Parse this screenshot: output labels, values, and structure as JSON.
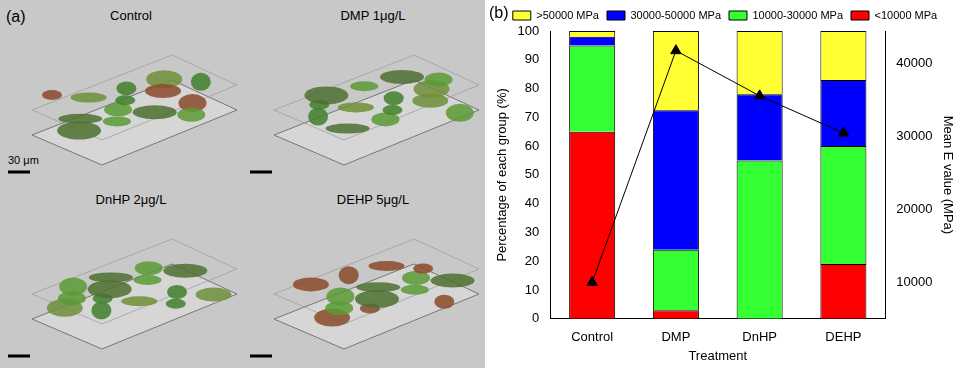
{
  "panel_a": {
    "label": "(a)",
    "images": [
      {
        "title": "Control"
      },
      {
        "title": "DMP  1μg/L"
      },
      {
        "title": "DnHP  2μg/L"
      },
      {
        "title": "DEHP  5μg/L"
      }
    ],
    "scale_bar": "30 μm"
  },
  "chart_data": {
    "type": "bar",
    "label": "(b)",
    "stacked": true,
    "grid": false,
    "legend": "top",
    "x_label": "Treatment",
    "y_label": "Percentage of each group (%)",
    "y2_label": "Mean E value (MPa)",
    "categories": [
      "Control",
      "DMP",
      "DnHP",
      "DEHP"
    ],
    "series": [
      {
        "name": "<10000 MPa",
        "color": "#ff0000",
        "values": [
          65,
          3,
          0,
          19
        ]
      },
      {
        "name": "10000-30000 MPa",
        "color": "#33ff33",
        "values": [
          30,
          21,
          55,
          41
        ]
      },
      {
        "name": "30000-50000 MPa",
        "color": "#0000ff",
        "values": [
          3,
          48.5,
          23,
          23
        ]
      },
      {
        "name": ">50000 MPa",
        "color": "#ffff33",
        "values": [
          2,
          27.5,
          22,
          17
        ]
      },
      {
        "type": "line",
        "axis": "y2",
        "color": "#000000",
        "marker": "triangle",
        "values": [
          10000,
          41800,
          35600,
          30500
        ]
      }
    ],
    "ylim": [
      0,
      100
    ],
    "yticks": [
      0,
      10,
      20,
      30,
      40,
      50,
      60,
      70,
      80,
      90,
      100
    ],
    "y2lim": [
      5000,
      44500
    ],
    "y2ticks": [
      10000,
      20000,
      30000,
      40000
    ]
  }
}
